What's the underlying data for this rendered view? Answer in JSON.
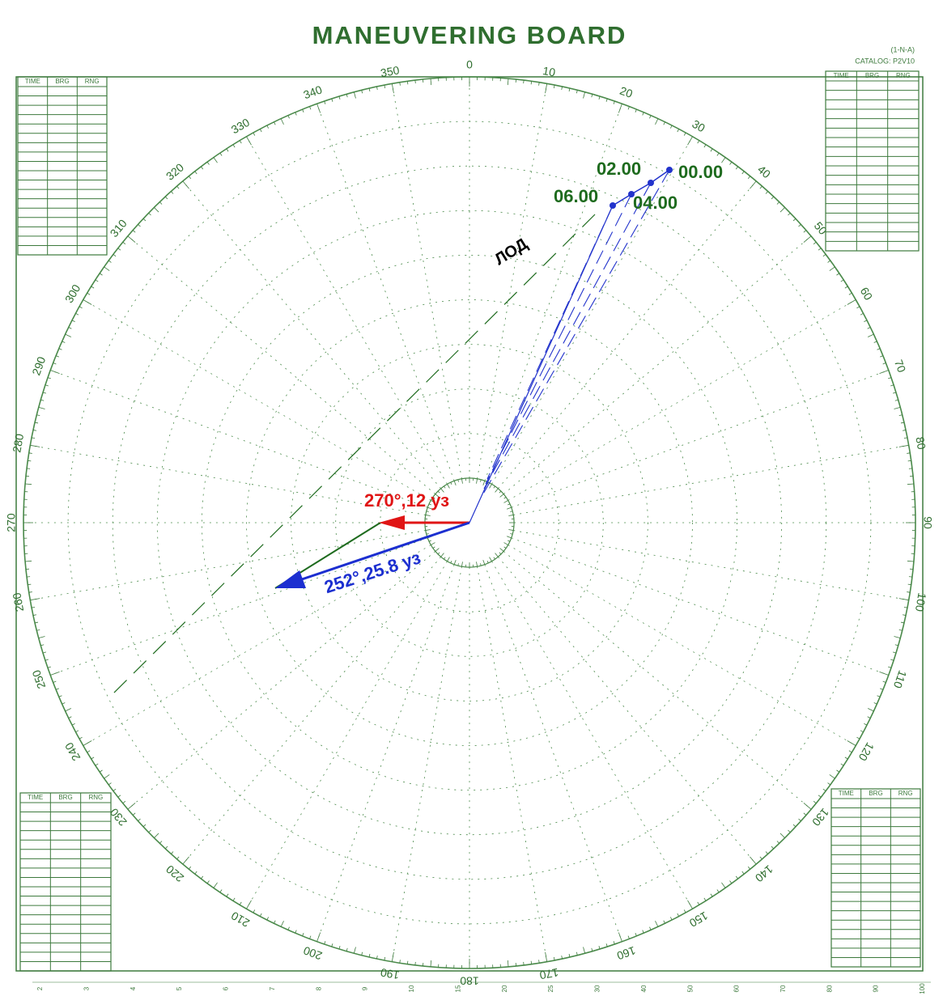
{
  "header": {
    "title": "MANEUVERING BOARD",
    "code": "(1-N-A)",
    "catalog": "CATALOG: P2V10"
  },
  "bearing_labels": [
    0,
    10,
    20,
    30,
    40,
    50,
    60,
    70,
    80,
    90,
    100,
    110,
    120,
    130,
    140,
    150,
    160,
    170,
    180,
    190,
    200,
    210,
    220,
    230,
    240,
    250,
    260,
    270,
    280,
    290,
    300,
    310,
    320,
    330,
    340,
    350
  ],
  "tables": [
    {
      "headers": [
        "TIME",
        "BRG",
        "RNG"
      ]
    },
    {
      "headers": [
        "TIME",
        "BRG",
        "RNG"
      ]
    },
    {
      "headers": [
        "TIME",
        "BRG",
        "RNG"
      ]
    },
    {
      "headers": [
        "TIME",
        "BRG",
        "RNG"
      ]
    }
  ],
  "plot": {
    "points": [
      "00.00",
      "02.00",
      "04.00",
      "06.00"
    ],
    "lod_label": "ЛОД",
    "own_vector_label": "270°,12 уз",
    "relative_vector_label": "252°,25.8 уз"
  },
  "bottom_scale": [
    2,
    3,
    4,
    5,
    6,
    7,
    8,
    9,
    10,
    15,
    20,
    25,
    30,
    40,
    50,
    60,
    70,
    80,
    90,
    100
  ]
}
